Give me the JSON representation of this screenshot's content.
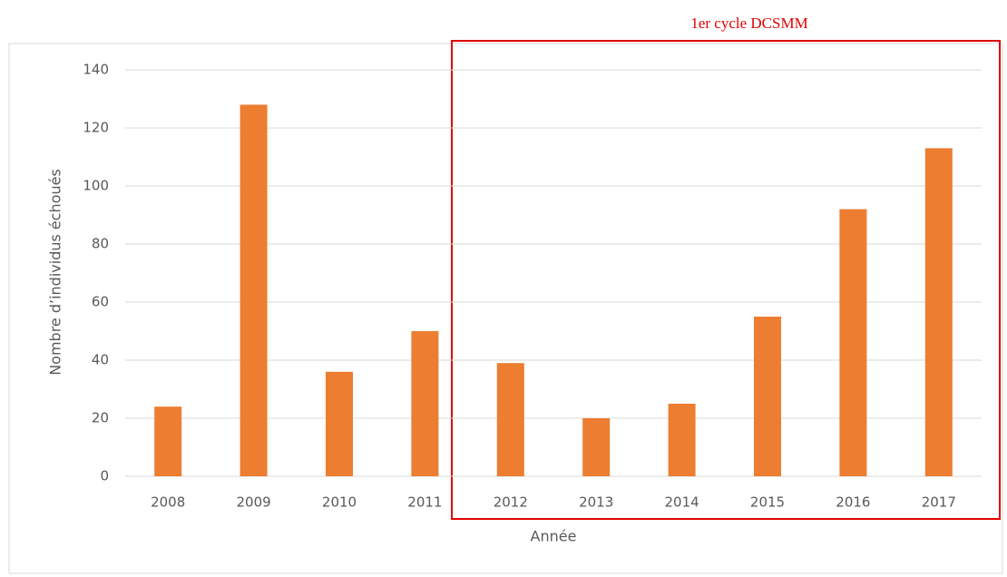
{
  "chart_data": {
    "type": "bar",
    "annotation": "1er cycle DCSMM",
    "xlabel": "Année",
    "ylabel": "Nombre d’individus échoués",
    "categories": [
      "2008",
      "2009",
      "2010",
      "2011",
      "2012",
      "2013",
      "2014",
      "2015",
      "2016",
      "2017"
    ],
    "values": [
      24,
      128,
      36,
      50,
      39,
      20,
      25,
      55,
      92,
      113
    ],
    "color": "#ed7d31",
    "ylim": [
      0,
      140
    ],
    "yticks": [
      0,
      20,
      40,
      60,
      80,
      100,
      120,
      140
    ],
    "grid": true
  }
}
